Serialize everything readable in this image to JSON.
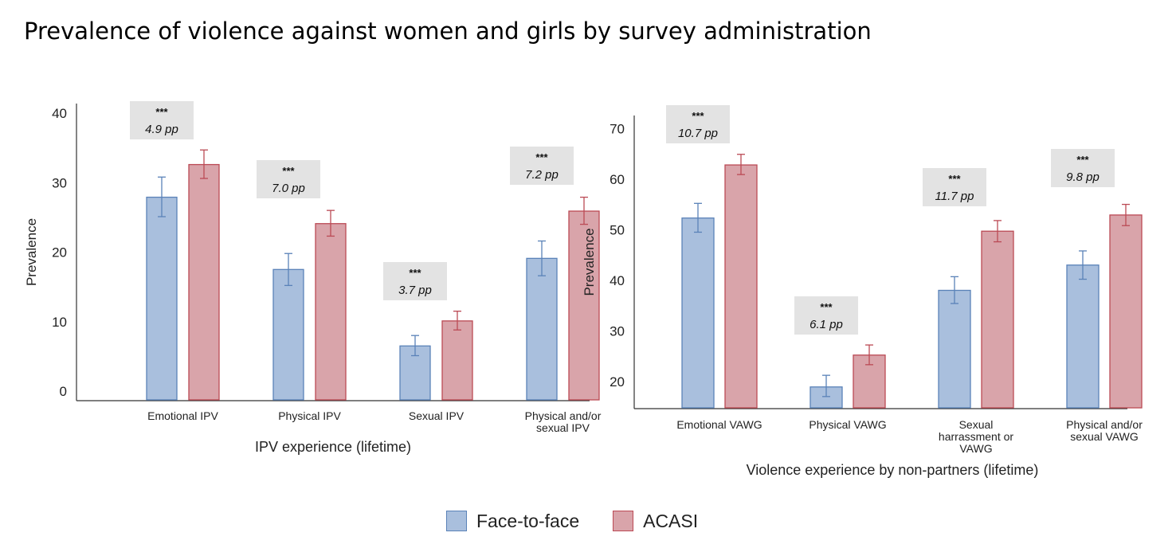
{
  "page_title": "Prevalence of violence against women and girls by survey administration",
  "colors": {
    "face_fill": "#a9bfdd",
    "face_stroke": "#5a82b8",
    "acasi_fill": "#d9a4aa",
    "acasi_stroke": "#bb4a55",
    "annotation_bg": "#e3e3e3"
  },
  "legend": [
    {
      "label": "Face-to-face",
      "key": "face"
    },
    {
      "label": "ACASI",
      "key": "acasi"
    }
  ],
  "chart_data": [
    {
      "type": "bar",
      "title": "",
      "xlabel": "IPV experience (lifetime)",
      "ylabel": "Prevalence",
      "ylim": [
        0,
        40
      ],
      "yticks": [
        0,
        10,
        20,
        30,
        40
      ],
      "grid": false,
      "legend_position": "bottom",
      "categories": [
        [
          "Emotional IPV"
        ],
        [
          "Physical IPV"
        ],
        [
          "Sexual IPV"
        ],
        [
          "Physical and/or",
          "sexual IPV"
        ]
      ],
      "series": [
        {
          "name": "Face-to-face",
          "values": [
            27.9,
            17.5,
            6.5,
            19.1
          ],
          "err_low": [
            25.1,
            15.2,
            5.1,
            16.6
          ],
          "err_high": [
            30.8,
            19.8,
            8.0,
            21.6
          ]
        },
        {
          "name": "ACASI",
          "values": [
            32.6,
            24.1,
            10.1,
            25.9
          ],
          "err_low": [
            30.6,
            22.3,
            8.8,
            24.0
          ],
          "err_high": [
            34.7,
            26.0,
            11.5,
            27.9
          ]
        }
      ],
      "annotations": [
        {
          "stars": "***",
          "text": "4.9 pp"
        },
        {
          "stars": "***",
          "text": "7.0 pp"
        },
        {
          "stars": "***",
          "text": "3.7 pp"
        },
        {
          "stars": "***",
          "text": "7.2 pp"
        }
      ]
    },
    {
      "type": "bar",
      "title": "",
      "xlabel": "Violence experience by non-partners (lifetime)",
      "ylabel": "Prevalence",
      "ylim": [
        16.5,
        71
      ],
      "yticks": [
        20,
        30,
        40,
        50,
        60,
        70
      ],
      "grid": false,
      "legend_position": "bottom",
      "categories": [
        [
          "Emotional VAWG"
        ],
        [
          "Physical VAWG"
        ],
        [
          "Sexual",
          "harrassment or",
          "VAWG"
        ],
        [
          "Physical and/or",
          "sexual VAWG"
        ]
      ],
      "series": [
        {
          "name": "Face-to-face",
          "values": [
            52.3,
            18.9,
            38.0,
            43.0
          ],
          "err_low": [
            49.5,
            17.0,
            35.4,
            40.2
          ],
          "err_high": [
            55.2,
            21.2,
            40.7,
            45.8
          ]
        },
        {
          "name": "ACASI",
          "values": [
            62.8,
            25.2,
            49.7,
            52.9
          ],
          "err_low": [
            60.9,
            23.3,
            47.6,
            50.8
          ],
          "err_high": [
            64.9,
            27.2,
            51.8,
            55.0
          ]
        }
      ],
      "annotations": [
        {
          "stars": "***",
          "text": "10.7 pp"
        },
        {
          "stars": "***",
          "text": "6.1 pp"
        },
        {
          "stars": "***",
          "text": "11.7 pp"
        },
        {
          "stars": "***",
          "text": "9.8 pp"
        }
      ]
    }
  ]
}
